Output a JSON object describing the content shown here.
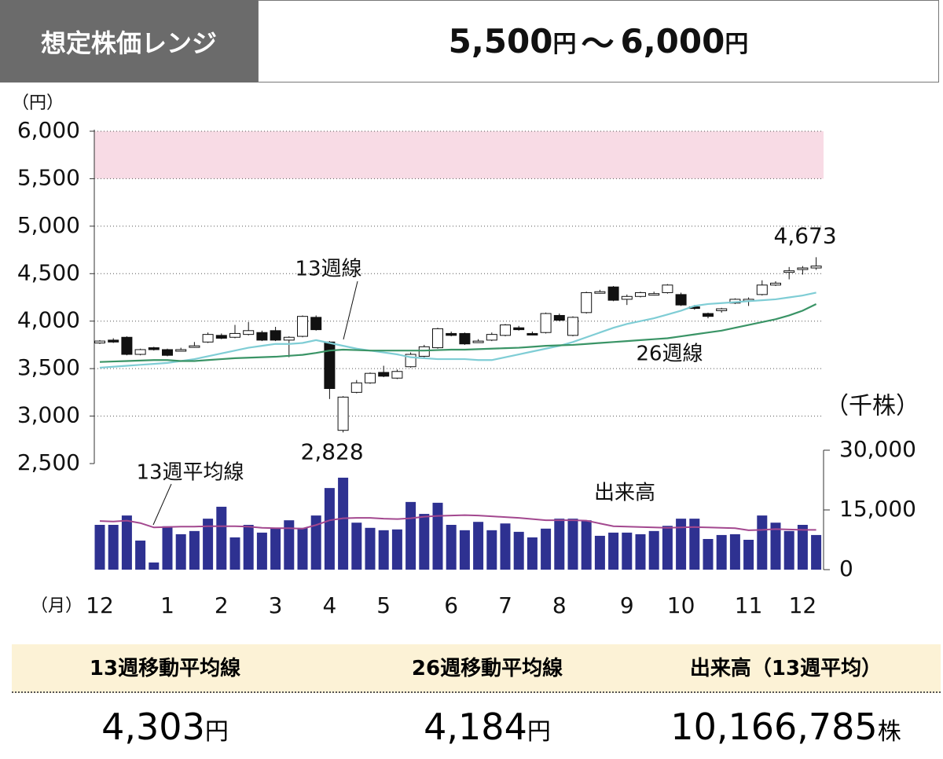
{
  "header": {
    "title": "想定株価レンジ",
    "low": "5,500",
    "unit": "円",
    "sep": "〜",
    "high": "6,000"
  },
  "chart_data": {
    "type": "candlestick",
    "y_unit": "（円）",
    "y2_unit": "（千株）",
    "x_unit": "（月）",
    "categories": [
      "12",
      null,
      null,
      null,
      null,
      "1",
      null,
      null,
      null,
      "2",
      null,
      null,
      null,
      "3",
      null,
      null,
      null,
      "4",
      null,
      null,
      null,
      "5",
      null,
      null,
      null,
      null,
      "6",
      null,
      null,
      null,
      "7",
      null,
      null,
      null,
      "8",
      null,
      null,
      null,
      null,
      "9",
      null,
      null,
      null,
      "10",
      null,
      null,
      null,
      null,
      "11",
      null,
      null,
      null,
      "12",
      null
    ],
    "open": [
      3770,
      3800,
      3830,
      3650,
      3720,
      3700,
      3690,
      3730,
      3780,
      3850,
      3830,
      3860,
      3880,
      3900,
      3800,
      3840,
      4040,
      3780,
      2850,
      3250,
      3350,
      3460,
      3400,
      3520,
      3630,
      3720,
      3870,
      3870,
      3780,
      3800,
      3850,
      3930,
      3870,
      3880,
      4060,
      3850,
      4090,
      4300,
      4360,
      4230,
      4260,
      4280,
      4300,
      4280,
      4150,
      4080,
      4110,
      4190,
      4220,
      4280,
      4380,
      4520,
      4550,
      4560
    ],
    "high": [
      3800,
      3820,
      3840,
      3710,
      3730,
      3710,
      3720,
      3780,
      3880,
      3870,
      3960,
      3990,
      3900,
      3940,
      3840,
      4060,
      4060,
      3790,
      3210,
      3380,
      3460,
      3530,
      3490,
      3670,
      3750,
      3930,
      3890,
      3880,
      3810,
      3880,
      3970,
      3950,
      3890,
      4090,
      4080,
      4050,
      4310,
      4330,
      4370,
      4280,
      4310,
      4310,
      4390,
      4300,
      4170,
      4090,
      4140,
      4240,
      4250,
      4430,
      4420,
      4570,
      4580,
      4673
    ],
    "low": [
      3760,
      3770,
      3640,
      3640,
      3690,
      3630,
      3680,
      3720,
      3770,
      3810,
      3820,
      3850,
      3790,
      3790,
      3620,
      3830,
      3900,
      3180,
      2828,
      3240,
      3340,
      3410,
      3390,
      3510,
      3620,
      3710,
      3840,
      3750,
      3770,
      3790,
      3840,
      3900,
      3850,
      3870,
      4000,
      3840,
      4080,
      4290,
      4210,
      4170,
      4250,
      4270,
      4290,
      4160,
      4120,
      4030,
      4090,
      4180,
      4160,
      4270,
      4370,
      4440,
      4490,
      4540
    ],
    "close": [
      3790,
      3780,
      3650,
      3700,
      3700,
      3640,
      3700,
      3740,
      3860,
      3820,
      3870,
      3900,
      3800,
      3800,
      3830,
      4050,
      3910,
      3290,
      3200,
      3350,
      3450,
      3420,
      3470,
      3650,
      3730,
      3920,
      3850,
      3760,
      3790,
      3860,
      3960,
      3910,
      3860,
      4080,
      4010,
      4040,
      4300,
      4310,
      4220,
      4260,
      4300,
      4290,
      4380,
      4170,
      4140,
      4050,
      4130,
      4230,
      4230,
      4380,
      4400,
      4530,
      4560,
      4580
    ],
    "series": [
      {
        "name": "13週線",
        "color": "#7fcdd5",
        "values": [
          3510,
          3520,
          3530,
          3540,
          3550,
          3560,
          3580,
          3600,
          3630,
          3660,
          3690,
          3720,
          3740,
          3760,
          3760,
          3770,
          3800,
          3770,
          3740,
          3710,
          3690,
          3670,
          3650,
          3620,
          3610,
          3600,
          3600,
          3600,
          3590,
          3590,
          3620,
          3650,
          3680,
          3710,
          3740,
          3780,
          3830,
          3880,
          3930,
          3970,
          4000,
          4030,
          4070,
          4110,
          4160,
          4180,
          4190,
          4200,
          4210,
          4220,
          4230,
          4250,
          4270,
          4300
        ]
      },
      {
        "name": "26週線",
        "color": "#3a9466",
        "values": [
          3570,
          3575,
          3580,
          3585,
          3590,
          3590,
          3580,
          3580,
          3590,
          3600,
          3610,
          3615,
          3620,
          3625,
          3635,
          3645,
          3665,
          3690,
          3700,
          3695,
          3690,
          3690,
          3690,
          3690,
          3690,
          3695,
          3700,
          3700,
          3705,
          3710,
          3715,
          3720,
          3730,
          3740,
          3745,
          3750,
          3760,
          3770,
          3780,
          3790,
          3800,
          3810,
          3820,
          3840,
          3860,
          3880,
          3900,
          3930,
          3960,
          3990,
          4020,
          4060,
          4110,
          4180
        ]
      }
    ],
    "volume": {
      "name": "出来高",
      "color": "#2e3191",
      "values": [
        11250,
        11250,
        13600,
        7300,
        1800,
        10900,
        8900,
        9700,
        12800,
        15800,
        8100,
        11250,
        9300,
        10500,
        12400,
        10500,
        13600,
        20500,
        23100,
        11800,
        10500,
        9900,
        10100,
        17000,
        14000,
        16800,
        11250,
        9900,
        12000,
        9900,
        11600,
        9500,
        8100,
        10300,
        12800,
        12800,
        12400,
        8500,
        9300,
        9300,
        8900,
        9700,
        11000,
        12800,
        12800,
        7700,
        8700,
        8900,
        7500,
        13600,
        11800,
        9700,
        11250,
        8700
      ]
    },
    "volume_ma": {
      "name": "13週平均線",
      "color": "#a3488f",
      "values": [
        12200,
        12100,
        12300,
        11700,
        10600,
        10700,
        10800,
        10800,
        10900,
        10900,
        10900,
        10800,
        10500,
        10400,
        10400,
        10300,
        11200,
        12400,
        12900,
        13000,
        13000,
        12800,
        12700,
        12900,
        13300,
        13500,
        13600,
        13700,
        13600,
        13400,
        13200,
        13000,
        12700,
        12400,
        12400,
        12400,
        12300,
        11600,
        10900,
        10800,
        10700,
        10600,
        10500,
        10600,
        10700,
        10600,
        10500,
        10400,
        9900,
        10000,
        10200,
        10100,
        10000,
        10000
      ]
    },
    "band": [
      5500,
      6000
    ],
    "band_color": "#f8dbe5",
    "ylim": [
      2500,
      6000
    ],
    "yticks": [
      {
        "value": 2500,
        "label": "2,500"
      },
      {
        "value": 3000,
        "label": "3,000"
      },
      {
        "value": 3500,
        "label": "3,500"
      },
      {
        "value": 4000,
        "label": "4,000"
      },
      {
        "value": 4500,
        "label": "4,500"
      },
      {
        "value": 5000,
        "label": "5,000"
      },
      {
        "value": 5500,
        "label": "5,500"
      },
      {
        "value": 6000,
        "label": "6,000"
      }
    ],
    "y2lim": [
      0,
      30000
    ],
    "y2ticks": [
      0,
      {
        "value": 15000,
        "label": "15,000"
      },
      {
        "value": 30000,
        "label": "30,000"
      }
    ],
    "grid": true,
    "annotations": [
      {
        "text": "4,673",
        "value": 4673,
        "at": "high"
      },
      {
        "text": "2,828",
        "value": 2828,
        "at": "low"
      }
    ]
  },
  "summary": [
    {
      "label": "13週移動平均線",
      "value": "4,303",
      "unit": "円"
    },
    {
      "label": "26週移動平均線",
      "value": "4,184",
      "unit": "円"
    },
    {
      "label": "出来高（13週平均）",
      "value": "10,166,785",
      "unit": "株"
    }
  ]
}
